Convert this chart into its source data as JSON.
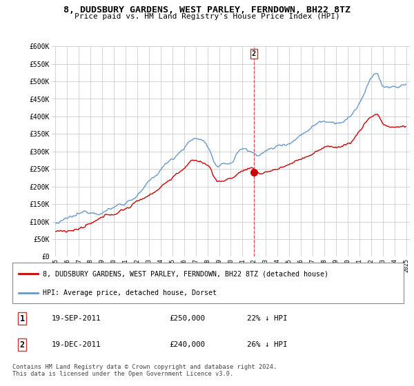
{
  "title": "8, DUDSBURY GARDENS, WEST PARLEY, FERNDOWN, BH22 8TZ",
  "subtitle": "Price paid vs. HM Land Registry's House Price Index (HPI)",
  "ylabel_ticks": [
    "£0",
    "£50K",
    "£100K",
    "£150K",
    "£200K",
    "£250K",
    "£300K",
    "£350K",
    "£400K",
    "£450K",
    "£500K",
    "£550K",
    "£600K"
  ],
  "ylabel_values": [
    0,
    50000,
    100000,
    150000,
    200000,
    250000,
    300000,
    350000,
    400000,
    450000,
    500000,
    550000,
    600000
  ],
  "ylim": [
    0,
    600000
  ],
  "legend_label_red": "8, DUDSBURY GARDENS, WEST PARLEY, FERNDOWN, BH22 8TZ (detached house)",
  "legend_label_blue": "HPI: Average price, detached house, Dorset",
  "transaction1_date": "19-SEP-2011",
  "transaction1_price": "£250,000",
  "transaction1_hpi": "22% ↓ HPI",
  "transaction2_date": "19-DEC-2011",
  "transaction2_price": "£240,000",
  "transaction2_hpi": "26% ↓ HPI",
  "footer": "Contains HM Land Registry data © Crown copyright and database right 2024.\nThis data is licensed under the Open Government Licence v3.0.",
  "red_color": "#cc0000",
  "blue_color": "#6699cc",
  "background_color": "#ffffff",
  "grid_color": "#cccccc",
  "transaction2_x_year": 2011.97,
  "transaction2_y": 240000,
  "xmin": 1994.7,
  "xmax": 2025.3
}
